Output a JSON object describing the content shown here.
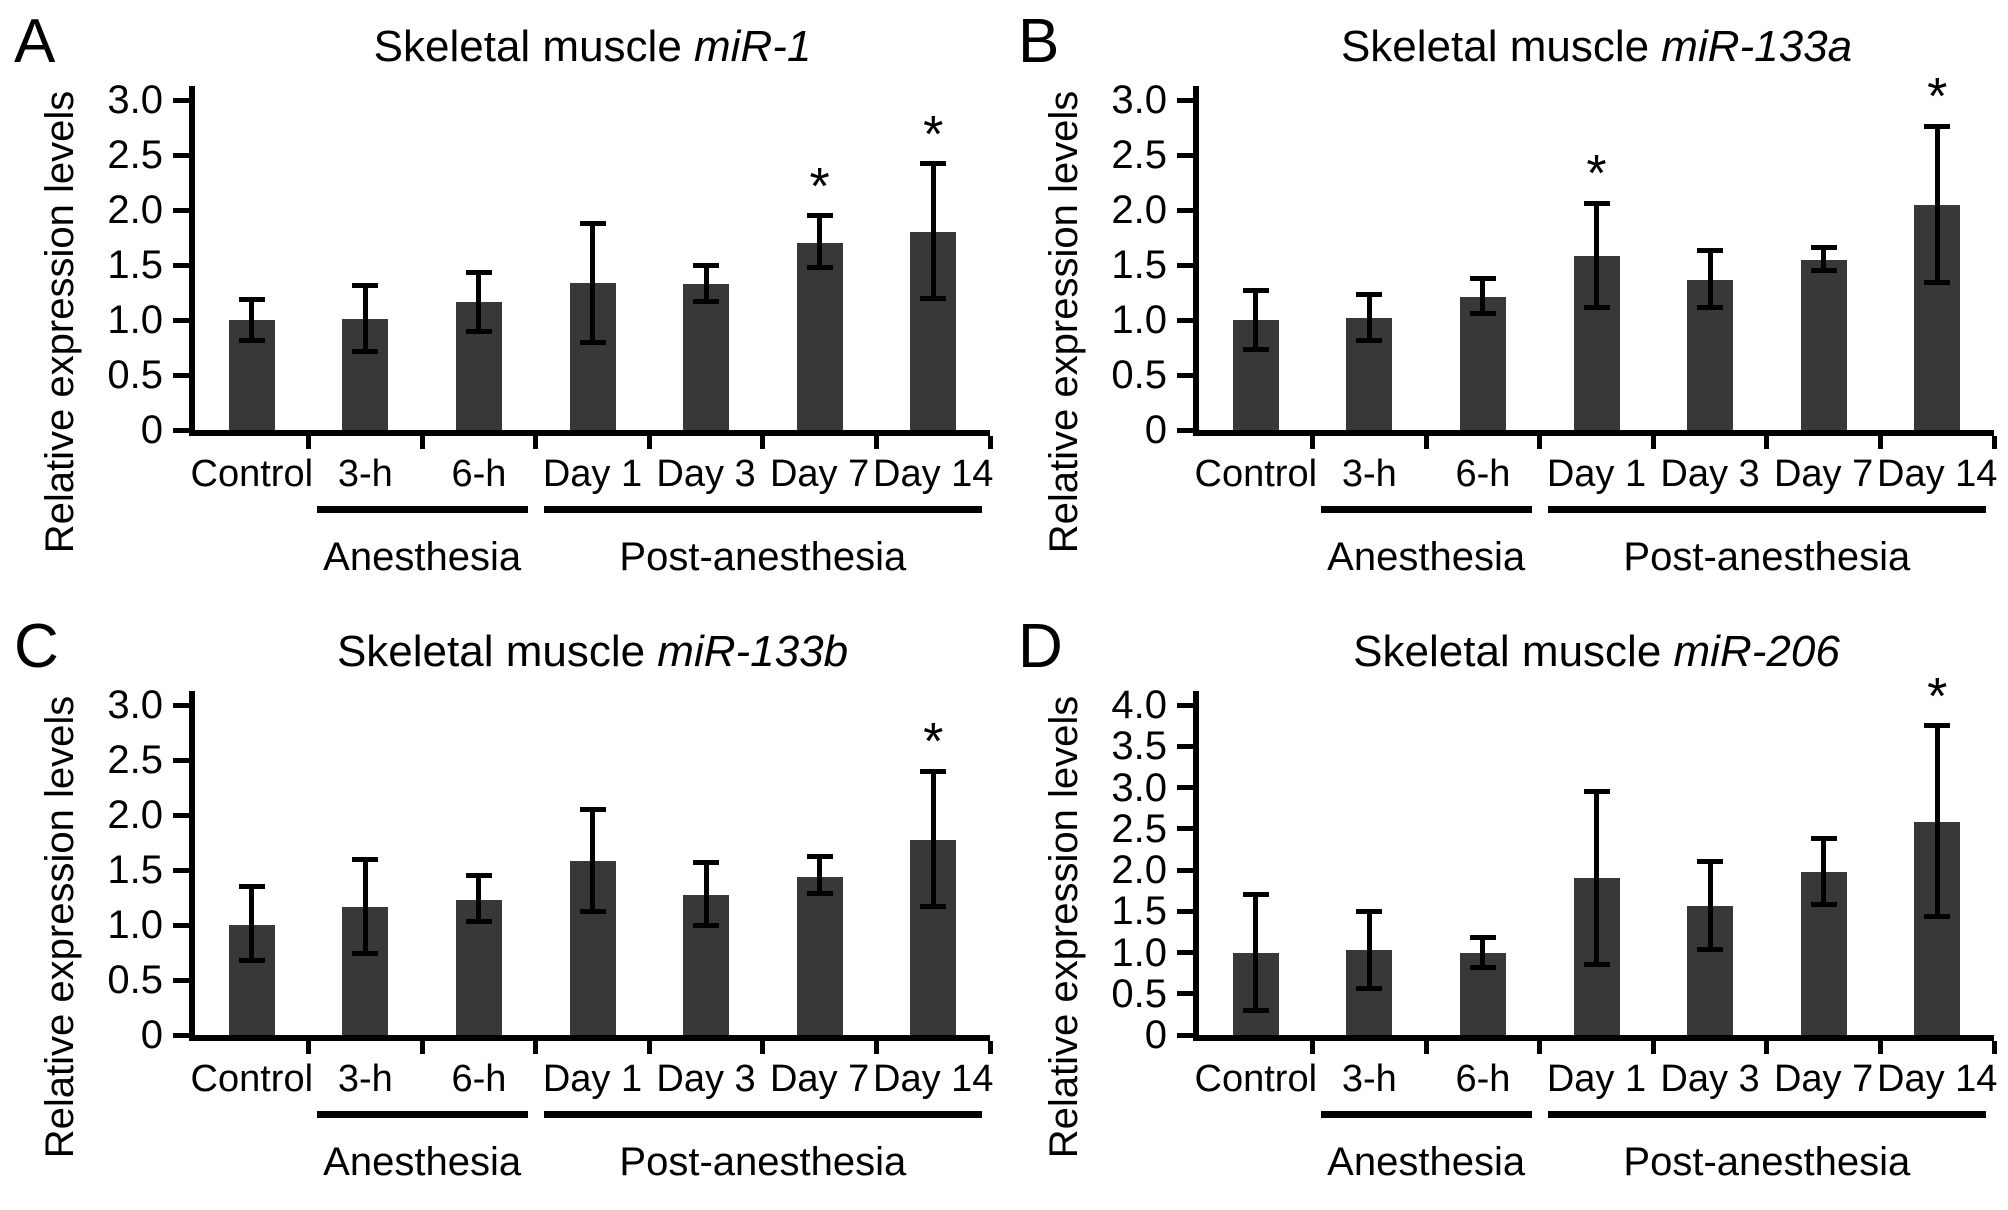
{
  "sig_marker": "*",
  "chart_style": {
    "bar_color": "#383838",
    "line_color": "#000000",
    "text_color": "#000000",
    "background": "#ffffff"
  },
  "chart_data": [
    {
      "type": "bar",
      "panel_letter": "A",
      "title": "Skeletal muscle miR-1",
      "title_regular": "Skeletal muscle ",
      "title_italic": "miR-1",
      "ylabel": "Relative expression levels",
      "xlabel": "",
      "ylim": [
        0,
        3.0
      ],
      "ytick_labels": [
        "3.0",
        "2.5",
        "2.0",
        "1.5",
        "1.0",
        "0.5",
        "0"
      ],
      "categories": [
        "Control",
        "3-h",
        "6-h",
        "Day 1",
        "Day 3",
        "Day 7",
        "Day 14"
      ],
      "values": [
        1.0,
        1.01,
        1.16,
        1.34,
        1.33,
        1.7,
        1.8
      ],
      "error_low": [
        0.81,
        0.71,
        0.9,
        0.8,
        1.17,
        1.48,
        1.2
      ],
      "error_high": [
        1.19,
        1.31,
        1.43,
        1.88,
        1.5,
        1.95,
        2.42
      ],
      "sig_flags": [
        0,
        0,
        0,
        0,
        0,
        1,
        1
      ],
      "group_labels": [
        {
          "label": "Anesthesia",
          "start": 1,
          "end": 2
        },
        {
          "label": "Post-anesthesia",
          "start": 3,
          "end": 6
        }
      ]
    },
    {
      "type": "bar",
      "panel_letter": "B",
      "title": "Skeletal muscle miR-133a",
      "title_regular": "Skeletal muscle ",
      "title_italic": "miR-133a",
      "ylabel": "Relative expression levels",
      "xlabel": "",
      "ylim": [
        0,
        3.0
      ],
      "ytick_labels": [
        "3.0",
        "2.5",
        "2.0",
        "1.5",
        "1.0",
        "0.5",
        "0"
      ],
      "categories": [
        "Control",
        "3-h",
        "6-h",
        "Day 1",
        "Day 3",
        "Day 7",
        "Day 14"
      ],
      "values": [
        1.0,
        1.02,
        1.21,
        1.58,
        1.36,
        1.55,
        2.05
      ],
      "error_low": [
        0.73,
        0.81,
        1.06,
        1.11,
        1.11,
        1.45,
        1.34
      ],
      "error_high": [
        1.27,
        1.23,
        1.38,
        2.06,
        1.63,
        1.66,
        2.76
      ],
      "sig_flags": [
        0,
        0,
        0,
        1,
        0,
        0,
        1
      ],
      "group_labels": [
        {
          "label": "Anesthesia",
          "start": 1,
          "end": 2
        },
        {
          "label": "Post-anesthesia",
          "start": 3,
          "end": 6
        }
      ]
    },
    {
      "type": "bar",
      "panel_letter": "C",
      "title": "Skeletal muscle miR-133b",
      "title_regular": "Skeletal muscle ",
      "title_italic": "miR-133b",
      "ylabel": "Relative expression levels",
      "xlabel": "",
      "ylim": [
        0,
        3.0
      ],
      "ytick_labels": [
        "3.0",
        "2.5",
        "2.0",
        "1.5",
        "1.0",
        "0.5",
        "0"
      ],
      "categories": [
        "Control",
        "3-h",
        "6-h",
        "Day 1",
        "Day 3",
        "Day 7",
        "Day 14"
      ],
      "values": [
        1.0,
        1.16,
        1.23,
        1.58,
        1.27,
        1.44,
        1.77
      ],
      "error_low": [
        0.68,
        0.74,
        1.03,
        1.12,
        1.0,
        1.29,
        1.17
      ],
      "error_high": [
        1.35,
        1.6,
        1.45,
        2.05,
        1.57,
        1.62,
        2.4
      ],
      "sig_flags": [
        0,
        0,
        0,
        0,
        0,
        0,
        1
      ],
      "group_labels": [
        {
          "label": "Anesthesia",
          "start": 1,
          "end": 2
        },
        {
          "label": "Post-anesthesia",
          "start": 3,
          "end": 6
        }
      ]
    },
    {
      "type": "bar",
      "panel_letter": "D",
      "title": "Skeletal muscle miR-206",
      "title_regular": "Skeletal muscle ",
      "title_italic": "miR-206",
      "ylabel": "Relative expression levels",
      "xlabel": "",
      "ylim": [
        0,
        4.0
      ],
      "ytick_labels": [
        "4.0",
        "3.5",
        "3.0",
        "2.5",
        "2.0",
        "1.5",
        "1.0",
        "0.5",
        "0"
      ],
      "categories": [
        "Control",
        "3-h",
        "6-h",
        "Day 1",
        "Day 3",
        "Day 7",
        "Day 14"
      ],
      "values": [
        1.0,
        1.03,
        1.0,
        1.9,
        1.56,
        1.97,
        2.58
      ],
      "error_low": [
        0.3,
        0.56,
        0.82,
        0.86,
        1.04,
        1.58,
        1.44
      ],
      "error_high": [
        1.7,
        1.5,
        1.18,
        2.95,
        2.1,
        2.38,
        3.75
      ],
      "sig_flags": [
        0,
        0,
        0,
        0,
        0,
        0,
        1
      ],
      "group_labels": [
        {
          "label": "Anesthesia",
          "start": 1,
          "end": 2
        },
        {
          "label": "Post-anesthesia",
          "start": 3,
          "end": 6
        }
      ]
    }
  ]
}
